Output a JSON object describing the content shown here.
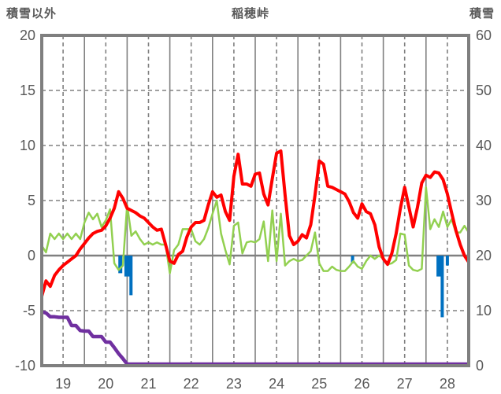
{
  "header": {
    "left_axis_title": "積雪以外",
    "chart_title": "稲穂峠",
    "right_axis_title": "積雪"
  },
  "colors": {
    "red_line": "#ff0000",
    "green_line": "#92d050",
    "purple_line": "#7030a0",
    "blue_bars": "#0070c0",
    "grid": "#808080",
    "border": "#7f7f7f",
    "text": "#595959",
    "background": "#ffffff"
  },
  "chart_data": {
    "type": "line",
    "title": "稲穂峠",
    "legend_position": "none",
    "grid": "on",
    "x_axis": {
      "unit": "day-of-month",
      "range": [
        19,
        29
      ],
      "tick_days": [
        19,
        20,
        21,
        22,
        23,
        24,
        25,
        26,
        27,
        28
      ],
      "tick_labels": [
        "19",
        "20",
        "21",
        "22",
        "23",
        "24",
        "25",
        "26",
        "27",
        "28"
      ],
      "solid_gridlines_at": "midnight day boundaries",
      "dashed_gridlines_at": "noon of each day"
    },
    "left_axis": {
      "title": "積雪以外",
      "range": [
        -10,
        20
      ],
      "tick_values": [
        20,
        15,
        10,
        5,
        0,
        -5,
        -10
      ],
      "tick_labels": [
        "20",
        "15",
        "10",
        "5",
        "0",
        "-5",
        "-10"
      ],
      "dashed_gridline_values": [
        15,
        10,
        5,
        -5
      ],
      "solid_zero_line": 0
    },
    "right_axis": {
      "title": "積雪",
      "range": [
        0,
        60
      ],
      "tick_values": [
        60,
        50,
        40,
        30,
        20,
        10,
        0
      ],
      "tick_labels": [
        "60",
        "50",
        "40",
        "30",
        "20",
        "10",
        "0"
      ]
    },
    "sampling": {
      "x_start": 19.0,
      "x_step": 0.1
    },
    "series": [
      {
        "name": "red-line",
        "type": "line",
        "axis": "left",
        "color": "#ff0000",
        "stroke_width": 4,
        "values": [
          -3.7,
          -2.3,
          -2.8,
          -1.8,
          -1.3,
          -0.9,
          -0.6,
          -0.3,
          0,
          0.6,
          1.1,
          1.6,
          2,
          2.2,
          2.3,
          2.7,
          3.4,
          4.3,
          5.8,
          5.2,
          4.3,
          4.1,
          3.9,
          3.6,
          3.4,
          3,
          2.6,
          2.3,
          2.4,
          1,
          -0.5,
          -0.7,
          0.1,
          0.4,
          1.7,
          2.6,
          3,
          3,
          3.2,
          4.6,
          5.8,
          5.3,
          5.5,
          4,
          3.2,
          7.2,
          9.2,
          6.5,
          6.5,
          6.3,
          7.4,
          7.5,
          5.6,
          4.6,
          7,
          9.3,
          9.5,
          5.5,
          1.8,
          1,
          1.3,
          1.9,
          1.6,
          2.8,
          5.5,
          8.6,
          8.3,
          6.3,
          6.2,
          6,
          5.8,
          5.6,
          4.9,
          3.9,
          3.4,
          4.7,
          4,
          3.8,
          2.8,
          0.8,
          -0.3,
          -0.8,
          0.2,
          2,
          4.3,
          6.2,
          4.4,
          2.6,
          4.4,
          6.6,
          7.3,
          7.1,
          7.6,
          7.5,
          6.9,
          5.6,
          3.9,
          2.3,
          1,
          0,
          -0.6
        ]
      },
      {
        "name": "green-line",
        "type": "line",
        "axis": "left",
        "color": "#92d050",
        "stroke_width": 2.5,
        "values": [
          0.9,
          0.3,
          2,
          1.5,
          2,
          1.5,
          2,
          1.5,
          2,
          1.5,
          3,
          3.9,
          3.3,
          3.8,
          2.6,
          3.2,
          4.2,
          -0.7,
          -1.3,
          -0.9,
          4.6,
          1.8,
          2.2,
          1.5,
          1,
          1.2,
          1,
          1.2,
          1,
          1,
          -1.6,
          0.5,
          1,
          2.4,
          2.4,
          2.4,
          1.3,
          1,
          1.5,
          2.5,
          3.8,
          5,
          2,
          0.5,
          -0.8,
          2.7,
          3,
          0.2,
          1.2,
          1.3,
          1.2,
          1.5,
          3.1,
          -0.5,
          4.1,
          -0.5,
          3.8,
          -0.9,
          -0.5,
          -0.3,
          -0.5,
          -0.4,
          0,
          0.4,
          2.1,
          -0.7,
          -1.4,
          -1.4,
          -1,
          -1.3,
          -1.4,
          -1.4,
          -1,
          -0.5,
          -1,
          -1.2,
          -0.5,
          0,
          -0.3,
          0,
          -0.3,
          -0.8,
          -0.7,
          -0.4,
          2,
          1.9,
          -0.9,
          -1.3,
          -1.4,
          -1.2,
          6.2,
          2.4,
          3.3,
          2.6,
          4,
          2.6,
          3.3,
          2.1,
          2.1,
          2.7,
          2.1
        ]
      },
      {
        "name": "purple-snow-depth",
        "type": "line",
        "axis": "right",
        "color": "#7030a0",
        "stroke_width": 4.5,
        "values": [
          9.5,
          9.3,
          8.6,
          8.6,
          8.5,
          8.5,
          8.5,
          7,
          7,
          6.1,
          6,
          6,
          5,
          5,
          5,
          4,
          4,
          3,
          1.9,
          1,
          0,
          0,
          0,
          0,
          0,
          0,
          0,
          0,
          0,
          0,
          0,
          0,
          0,
          0,
          0,
          0,
          0,
          0,
          0,
          0,
          0,
          0,
          0,
          0,
          0,
          0,
          0,
          0,
          0,
          0,
          0,
          0,
          0,
          0,
          0,
          0,
          0,
          0,
          0,
          0,
          0,
          0,
          0,
          0,
          0,
          0,
          0,
          0,
          0,
          0,
          0,
          0,
          0,
          0,
          0,
          0,
          0,
          0,
          0,
          0,
          0,
          0,
          0,
          0,
          0,
          0,
          0,
          0,
          0,
          0,
          0,
          0,
          0,
          0,
          0,
          0,
          0,
          0,
          0,
          0,
          0
        ]
      },
      {
        "name": "blue-bars",
        "type": "bar",
        "axis": "left",
        "color": "#0070c0",
        "points": [
          {
            "x": 20.84,
            "v": -1.6,
            "w": 5
          },
          {
            "x": 21.0,
            "v": -1.9,
            "w": 7
          },
          {
            "x": 21.09,
            "v": -3.6,
            "w": 4
          },
          {
            "x": 26.28,
            "v": -0.7,
            "w": 4
          },
          {
            "x": 28.31,
            "v": -1.9,
            "w": 7
          },
          {
            "x": 28.38,
            "v": -5.6,
            "w": 4
          },
          {
            "x": 28.5,
            "v": -0.9,
            "w": 4
          }
        ]
      }
    ]
  }
}
